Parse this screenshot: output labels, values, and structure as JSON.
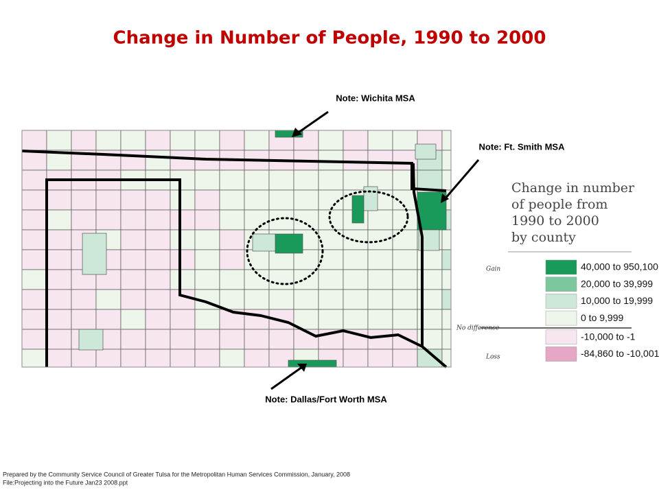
{
  "title": "Change in Number of People, 1990 to 2000",
  "notes": [
    "Note:  Wichita MSA",
    "Note:  Ft. Smith MSA",
    "Note:  Dallas/Fort Worth MSA"
  ],
  "legend": {
    "title_lines": [
      "Change in number",
      "of people from",
      "1990 to 2000",
      "by county"
    ],
    "groups": [
      "Gain",
      "No difference",
      "Loss"
    ],
    "items": [
      {
        "label": "40,000 to 950,100",
        "color": "#1a9a5a"
      },
      {
        "label": "20,000 to 39,999",
        "color": "#7cc79e"
      },
      {
        "label": "10,000 to 19,999",
        "color": "#cde8d8"
      },
      {
        "label": "0 to 9,999",
        "color": "#eef6ec"
      },
      {
        "label": "-10,000 to -1",
        "color": "#f7e6ef"
      },
      {
        "label": "-84,860 to -10,001",
        "color": "#e6a6c6"
      }
    ]
  },
  "footer": [
    "Prepared by the Community Service Council of Greater Tulsa for the Metropolitan Human Services Commission, January, 2008",
    "File:Projecting into the Future Jan23 2008.ppt"
  ]
}
